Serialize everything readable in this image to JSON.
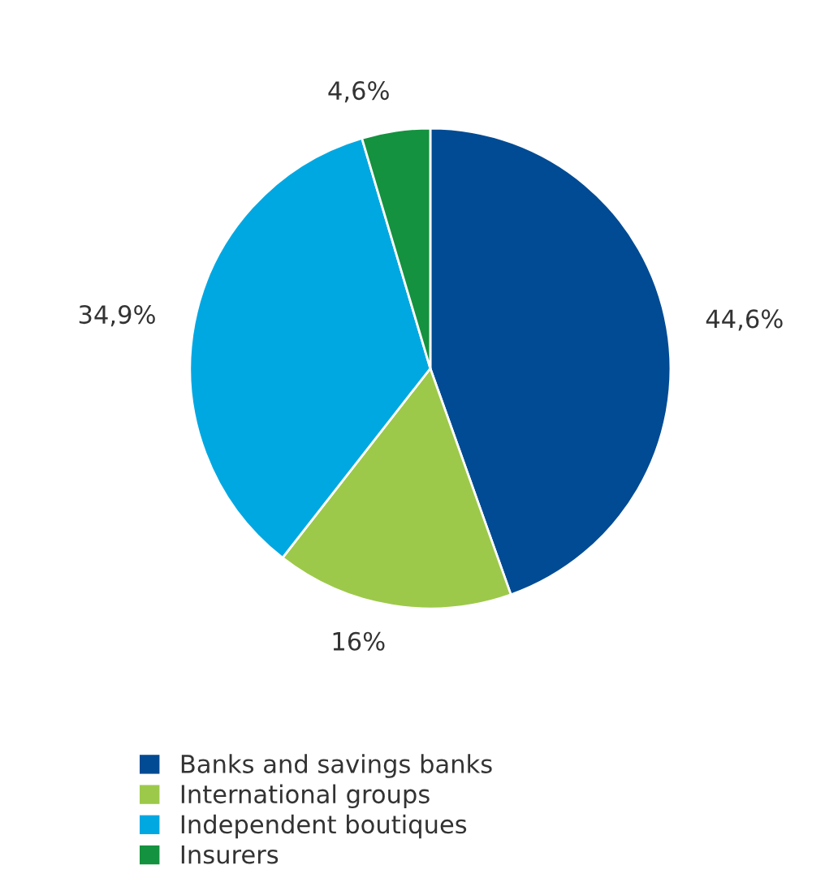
{
  "chart_data": {
    "type": "pie",
    "categories": [
      "Banks and savings banks",
      "International groups",
      "Independent boutiques",
      "Insurers"
    ],
    "values": [
      44.6,
      16,
      34.9,
      4.6
    ],
    "value_labels": [
      "44,6%",
      "16%",
      "34,9%",
      "4,6%"
    ],
    "colors": [
      "#004b93",
      "#9dc94a",
      "#00a8e2",
      "#14923f"
    ],
    "legend": "bottom"
  }
}
